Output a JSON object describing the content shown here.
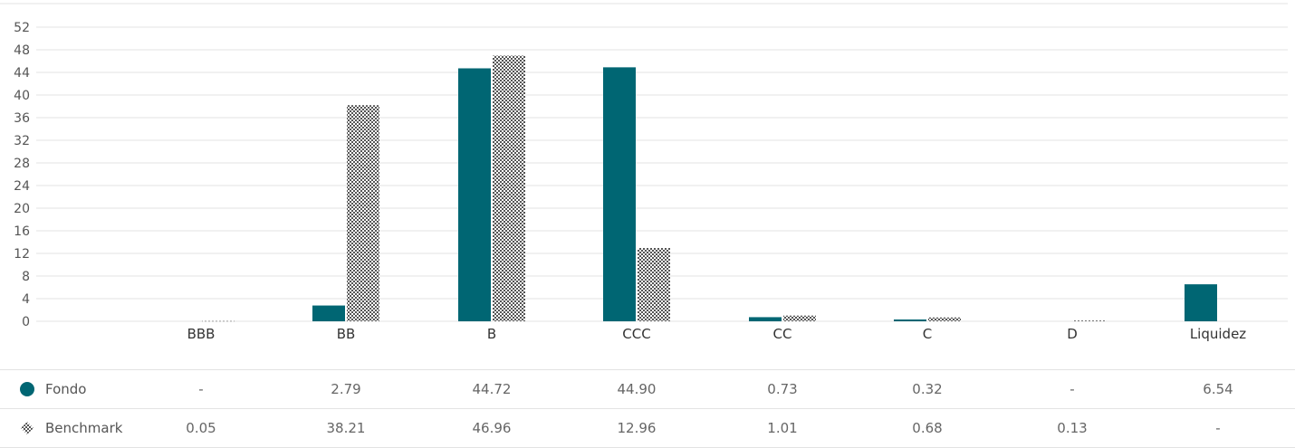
{
  "chart_data": {
    "type": "bar",
    "categories": [
      "BBB",
      "BB",
      "B",
      "CCC",
      "CC",
      "C",
      "D",
      "Liquidez"
    ],
    "series": [
      {
        "name": "Fondo",
        "values": [
          null,
          2.79,
          44.72,
          44.9,
          0.73,
          0.32,
          null,
          6.54
        ],
        "color": "#006673",
        "pattern": "solid"
      },
      {
        "name": "Benchmark",
        "values": [
          0.05,
          38.21,
          46.96,
          12.96,
          1.01,
          0.68,
          0.13,
          null
        ],
        "color": "#555555",
        "pattern": "checker"
      }
    ],
    "ylim": [
      0,
      52
    ],
    "yticks": [
      0,
      4,
      8,
      12,
      16,
      20,
      24,
      28,
      32,
      36,
      40,
      44,
      48,
      52
    ],
    "grid": true,
    "title": "",
    "xlabel": "",
    "ylabel": ""
  },
  "table": {
    "rows": [
      {
        "label": "Fondo",
        "icon": "filled-circle-icon",
        "cells": [
          "-",
          "2.79",
          "44.72",
          "44.90",
          "0.73",
          "0.32",
          "-",
          "6.54"
        ]
      },
      {
        "label": "Benchmark",
        "icon": "checker-pattern-icon",
        "cells": [
          "0.05",
          "38.21",
          "46.96",
          "12.96",
          "1.01",
          "0.68",
          "0.13",
          "-"
        ]
      }
    ]
  }
}
